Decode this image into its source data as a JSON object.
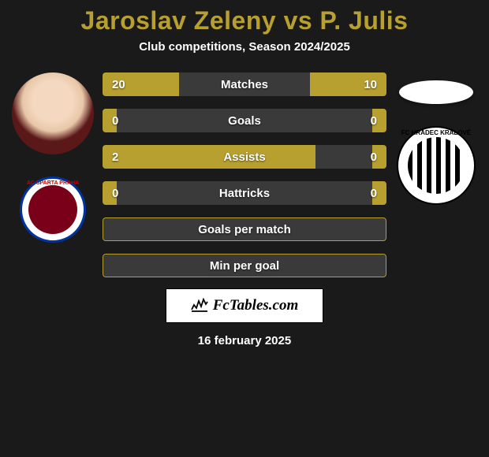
{
  "header": {
    "title": "Jaroslav Zeleny vs P. Julis",
    "subtitle": "Club competitions, Season 2024/2025",
    "title_color": "#b8a030",
    "subtitle_color": "#ffffff"
  },
  "background_color": "#1a1a1a",
  "player_left": {
    "name": "Jaroslav Zeleny",
    "club_id": "sparta",
    "club_display": "AC SPARTA PRAHA"
  },
  "player_right": {
    "name": "P. Julis",
    "club_id": "hradec",
    "club_display": "FC HRADEC KRÁLOVÉ"
  },
  "bars": {
    "accent_color": "#b8a030",
    "track_color": "#3a3a3a",
    "text_color": "#ffffff",
    "rows": [
      {
        "label": "Matches",
        "left_value": "20",
        "right_value": "10",
        "left_pct": 27,
        "right_pct": 27
      },
      {
        "label": "Goals",
        "left_value": "0",
        "right_value": "0",
        "left_pct": 5,
        "right_pct": 5
      },
      {
        "label": "Assists",
        "left_value": "2",
        "right_value": "0",
        "left_pct": 75,
        "right_pct": 5
      },
      {
        "label": "Hattricks",
        "left_value": "0",
        "right_value": "0",
        "left_pct": 5,
        "right_pct": 5
      },
      {
        "label": "Goals per match",
        "left_value": "",
        "right_value": "",
        "left_pct": 0,
        "right_pct": 0,
        "outline_only": true
      },
      {
        "label": "Min per goal",
        "left_value": "",
        "right_value": "",
        "left_pct": 0,
        "right_pct": 0,
        "outline_only": true
      }
    ]
  },
  "brand": {
    "site": "FcTables.com"
  },
  "footer": {
    "date": "16 february 2025"
  }
}
